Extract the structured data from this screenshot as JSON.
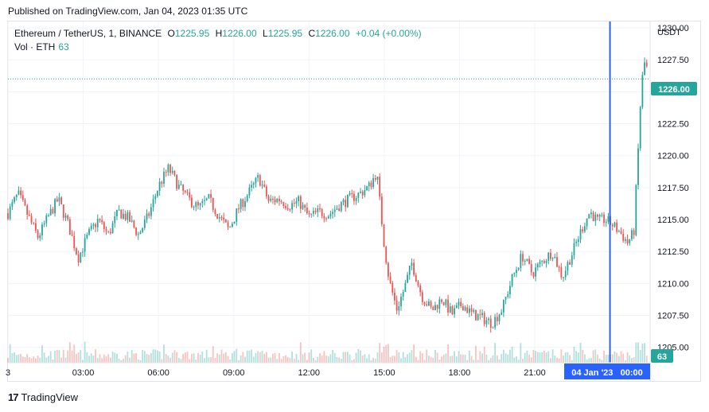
{
  "header": {
    "published": "Published on TradingView.com, Jan 04, 2023 01:35 UTC"
  },
  "legend": {
    "symbol": "Ethereum / TetherUS, 1, BINANCE",
    "open_label": "O",
    "open": "1225.95",
    "high_label": "H",
    "high": "1226.00",
    "low_label": "L",
    "low": "1225.95",
    "close_label": "C",
    "close": "1226.00",
    "change": "+0.04 (+0.00%)",
    "volume_label": "Vol · ETH",
    "volume": "63"
  },
  "footer": {
    "brand": "TradingView",
    "logo_text": "17"
  },
  "colors": {
    "up": "#26a69a",
    "down": "#ef5350",
    "crosshair": "#2962ff",
    "price_line": "#26a69a",
    "grid": "#f0f3fa"
  },
  "chart_data": {
    "type": "candlestick",
    "currency": "USDT",
    "last_price": "1226.00",
    "last_volume": "63",
    "crosshair_label": "04 Jan '23   00:00",
    "y_ticks": [
      "1230.00",
      "1227.50",
      "1225.00",
      "1222.50",
      "1220.00",
      "1217.50",
      "1215.00",
      "1212.50",
      "1210.00",
      "1207.50",
      "1205.00"
    ],
    "x_ticks": [
      "3",
      "03:00",
      "06:00",
      "09:00",
      "12:00",
      "15:00",
      "18:00",
      "21:00"
    ],
    "ylim": [
      1203.8,
      1230.5
    ],
    "x_hours": [
      0,
      25.6
    ],
    "series": [
      {
        "t": 0.0,
        "close": 1215.5
      },
      {
        "t": 0.4,
        "close": 1217.0
      },
      {
        "t": 0.8,
        "close": 1215.3
      },
      {
        "t": 1.2,
        "close": 1213.6
      },
      {
        "t": 1.6,
        "close": 1215.2
      },
      {
        "t": 2.0,
        "close": 1216.6
      },
      {
        "t": 2.4,
        "close": 1214.6
      },
      {
        "t": 2.8,
        "close": 1212.0
      },
      {
        "t": 3.2,
        "close": 1213.8
      },
      {
        "t": 3.6,
        "close": 1215.0
      },
      {
        "t": 4.0,
        "close": 1213.8
      },
      {
        "t": 4.4,
        "close": 1215.6
      },
      {
        "t": 4.8,
        "close": 1215.1
      },
      {
        "t": 5.2,
        "close": 1213.8
      },
      {
        "t": 5.6,
        "close": 1215.3
      },
      {
        "t": 6.0,
        "close": 1217.6
      },
      {
        "t": 6.4,
        "close": 1219.0
      },
      {
        "t": 6.8,
        "close": 1217.6
      },
      {
        "t": 7.2,
        "close": 1216.6
      },
      {
        "t": 7.6,
        "close": 1215.9
      },
      {
        "t": 8.0,
        "close": 1216.6
      },
      {
        "t": 8.4,
        "close": 1215.3
      },
      {
        "t": 8.8,
        "close": 1214.2
      },
      {
        "t": 9.2,
        "close": 1215.9
      },
      {
        "t": 9.6,
        "close": 1217.1
      },
      {
        "t": 10.0,
        "close": 1218.3
      },
      {
        "t": 10.4,
        "close": 1216.4
      },
      {
        "t": 10.8,
        "close": 1216.6
      },
      {
        "t": 11.2,
        "close": 1216.1
      },
      {
        "t": 11.6,
        "close": 1216.4
      },
      {
        "t": 12.0,
        "close": 1215.2
      },
      {
        "t": 12.4,
        "close": 1215.6
      },
      {
        "t": 12.8,
        "close": 1215.4
      },
      {
        "t": 13.2,
        "close": 1216.1
      },
      {
        "t": 13.6,
        "close": 1216.6
      },
      {
        "t": 14.0,
        "close": 1217.0
      },
      {
        "t": 14.4,
        "close": 1217.6
      },
      {
        "t": 14.7,
        "close": 1218.7
      },
      {
        "t": 15.0,
        "close": 1213.0
      },
      {
        "t": 15.2,
        "close": 1210.2
      },
      {
        "t": 15.5,
        "close": 1208.0
      },
      {
        "t": 15.8,
        "close": 1209.6
      },
      {
        "t": 16.1,
        "close": 1211.6
      },
      {
        "t": 16.5,
        "close": 1209.0
      },
      {
        "t": 16.9,
        "close": 1207.9
      },
      {
        "t": 17.3,
        "close": 1208.8
      },
      {
        "t": 17.7,
        "close": 1207.6
      },
      {
        "t": 18.1,
        "close": 1208.4
      },
      {
        "t": 18.5,
        "close": 1207.6
      },
      {
        "t": 18.9,
        "close": 1207.3
      },
      {
        "t": 19.3,
        "close": 1206.9
      },
      {
        "t": 19.7,
        "close": 1208.0
      },
      {
        "t": 20.1,
        "close": 1210.4
      },
      {
        "t": 20.5,
        "close": 1212.2
      },
      {
        "t": 20.9,
        "close": 1210.8
      },
      {
        "t": 21.3,
        "close": 1211.7
      },
      {
        "t": 21.7,
        "close": 1212.5
      },
      {
        "t": 22.1,
        "close": 1210.5
      },
      {
        "t": 22.5,
        "close": 1212.4
      },
      {
        "t": 22.9,
        "close": 1214.4
      },
      {
        "t": 23.2,
        "close": 1215.6
      },
      {
        "t": 23.5,
        "close": 1214.9
      },
      {
        "t": 23.8,
        "close": 1215.0
      },
      {
        "t": 24.1,
        "close": 1214.6
      },
      {
        "t": 24.4,
        "close": 1214.0
      },
      {
        "t": 24.7,
        "close": 1213.2
      },
      {
        "t": 24.95,
        "close": 1214.0
      },
      {
        "t": 25.1,
        "close": 1219.5
      },
      {
        "t": 25.25,
        "close": 1225.5
      },
      {
        "t": 25.4,
        "close": 1227.5
      },
      {
        "t": 25.55,
        "close": 1226.0
      }
    ]
  }
}
